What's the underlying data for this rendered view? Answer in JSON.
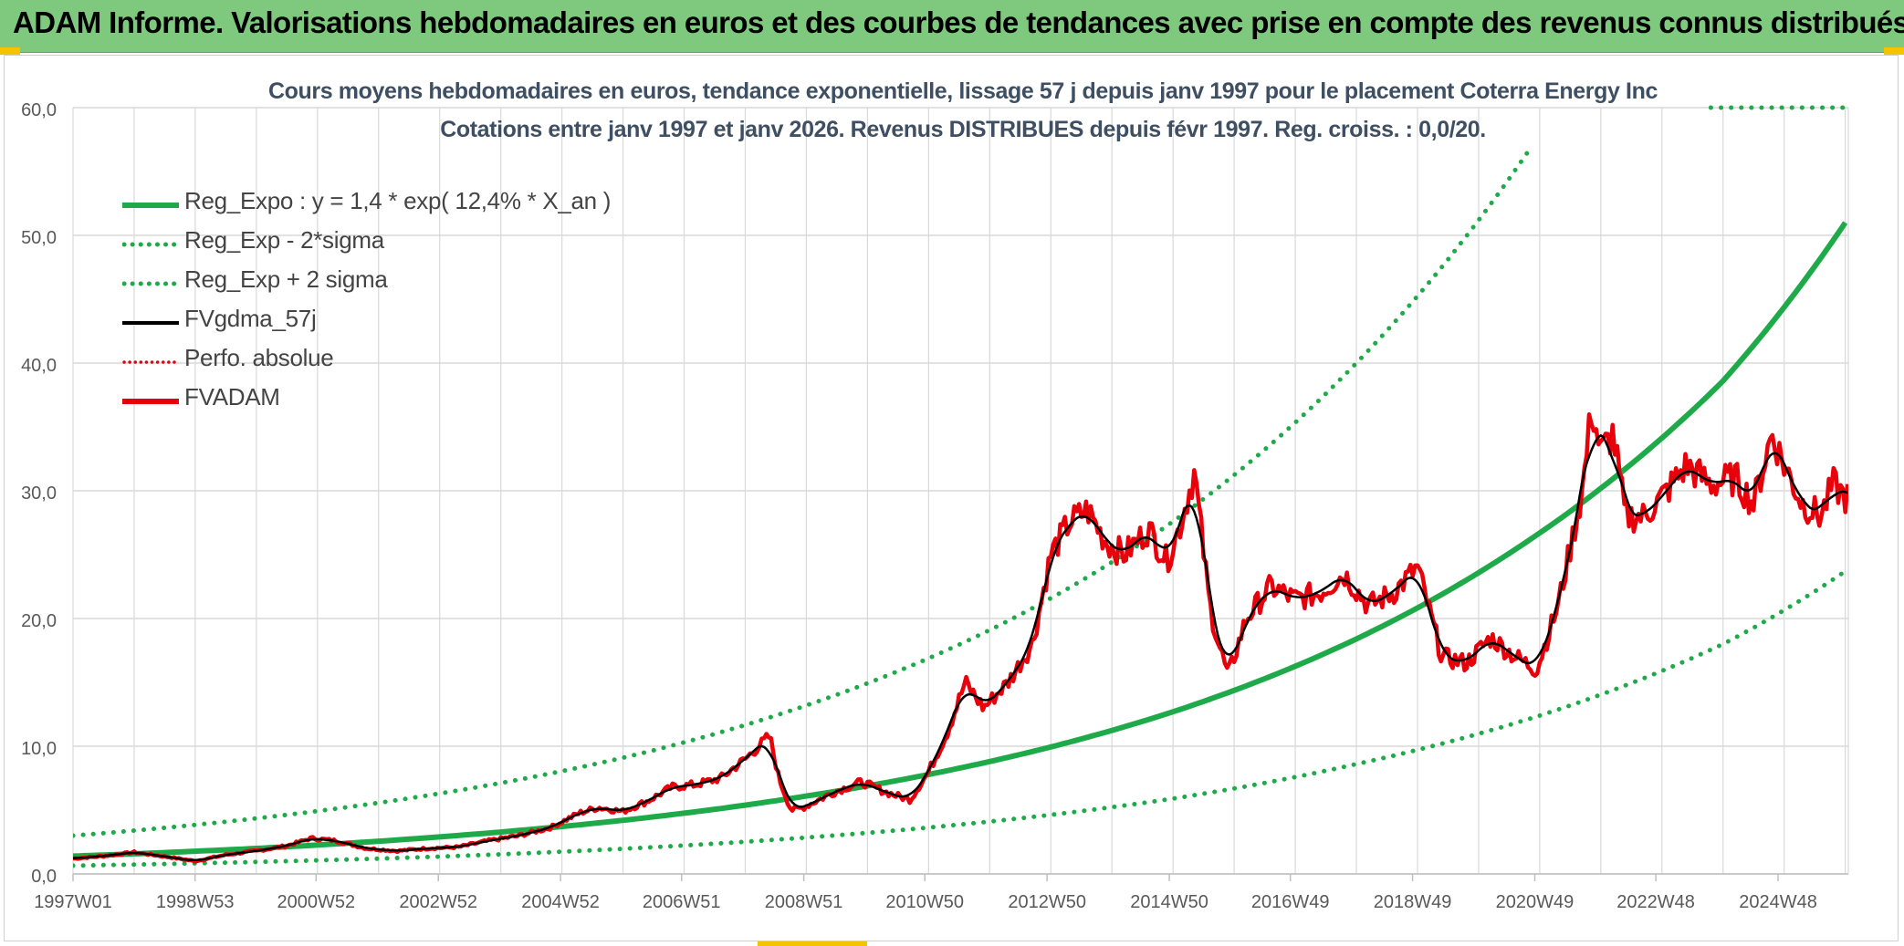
{
  "banner": {
    "title": "ADAM Informe. Valorisations hebdomadaires en euros et des courbes de tendances avec prise en compte des revenus connus distribués"
  },
  "colors": {
    "banner_bg": "#7fc97f",
    "trend_green": "#1faa4a",
    "fvadam_red": "#e8000b",
    "fvgdma_black": "#000000",
    "grid": "#d9d9d9",
    "title_text": "#3e4f63",
    "axis_text": "#595959",
    "corner_yellow": "#f5c400"
  },
  "chart_data": {
    "type": "line",
    "title_line1": "Cours moyens hebdomadaires en euros, tendance exponentielle, lissage 57 j depuis janv 1997 pour le placement Coterra Energy Inc",
    "title_line2": "Cotations entre janv 1997 et janv 2026. Revenus DISTRIBUES depuis févr 1997. Reg. croiss. : 0,0/20.",
    "x_ticks": [
      "1997W01",
      "1998W53",
      "2000W52",
      "2002W52",
      "2004W52",
      "2006W51",
      "2008W51",
      "2010W50",
      "2012W50",
      "2014W50",
      "2016W49",
      "2018W49",
      "2020W49",
      "2022W48",
      "2024W48"
    ],
    "x_range_years": [
      1997.0,
      2026.05
    ],
    "y_ticks": [
      "0,0",
      "10,0",
      "20,0",
      "30,0",
      "40,0",
      "50,0",
      "60,0"
    ],
    "ylim": [
      0,
      60
    ],
    "legend": [
      {
        "key": "reg_expo",
        "label": "Reg_Expo : y = 1,4 * exp( 12,4% *  X_an )",
        "style": "solid-green-thick"
      },
      {
        "key": "reg_minus",
        "label": "Reg_Exp - 2*sigma",
        "style": "dotted-green"
      },
      {
        "key": "reg_plus",
        "label": "Reg_Exp + 2 sigma",
        "style": "dotted-green"
      },
      {
        "key": "fvgdma",
        "label": "FVgdma_57j",
        "style": "solid-black"
      },
      {
        "key": "perfo",
        "label": "Perfo. absolue",
        "style": "dotted-red"
      },
      {
        "key": "fvadam",
        "label": "FVADAM",
        "style": "solid-red-thick"
      }
    ],
    "series": [
      {
        "name": "Reg_Expo",
        "formula": {
          "a": 1.4,
          "rate": 0.124
        },
        "x": [
          1997,
          2000,
          2003,
          2006,
          2009,
          2012,
          2015,
          2018,
          2021,
          2024,
          2026
        ],
        "values": [
          1.4,
          2.0,
          2.9,
          4.2,
          6.1,
          8.8,
          12.7,
          18.4,
          26.7,
          38.6,
          51.0
        ]
      },
      {
        "name": "Reg_Exp - 2*sigma",
        "x": [
          1997,
          2000,
          2003,
          2006,
          2009,
          2012,
          2015,
          2018,
          2021,
          2024,
          2026
        ],
        "values": [
          0.65,
          0.94,
          1.36,
          1.97,
          2.85,
          4.1,
          5.9,
          8.6,
          12.4,
          18.0,
          23.7
        ]
      },
      {
        "name": "Reg_Exp + 2 sigma",
        "x": [
          1997,
          2000,
          2003,
          2006,
          2009,
          2012,
          2015,
          2018,
          2021
        ],
        "values": [
          3.0,
          4.35,
          6.3,
          9.1,
          13.2,
          19.1,
          27.6,
          40.0,
          57.9
        ],
        "note": "dotted line leaves the plot above 57 near 2021, resumes at 60 from ~2023.8 to 2026"
      },
      {
        "name": "FVADAM",
        "x": [
          1997.0,
          1997.5,
          1998.0,
          1998.6,
          1999.0,
          1999.5,
          2000.0,
          2000.5,
          2000.9,
          2001.3,
          2001.8,
          2002.3,
          2002.8,
          2003.3,
          2003.8,
          2004.3,
          2004.8,
          2005.3,
          2005.6,
          2006.0,
          2006.4,
          2006.8,
          2007.2,
          2007.6,
          2008.0,
          2008.4,
          2008.55,
          2008.75,
          2008.95,
          2009.2,
          2009.5,
          2009.9,
          2010.3,
          2010.7,
          2011.0,
          2011.3,
          2011.6,
          2011.9,
          2012.3,
          2012.7,
          2013.0,
          2013.3,
          2013.6,
          2013.9,
          2014.2,
          2014.6,
          2014.9,
          2015.1,
          2015.35,
          2015.6,
          2015.75,
          2015.9,
          2016.2,
          2016.6,
          2017.0,
          2017.4,
          2017.8,
          2018.2,
          2018.6,
          2019.0,
          2019.4,
          2019.8,
          2020.2,
          2020.6,
          2020.95,
          2021.3,
          2021.7,
          2021.85,
          2022.0,
          2022.2,
          2022.4,
          2022.7,
          2023.0,
          2023.4,
          2023.8,
          2024.2,
          2024.5,
          2024.8,
          2025.0,
          2025.3,
          2025.6,
          2025.8,
          2026.0
        ],
        "values": [
          1.2,
          1.4,
          1.7,
          1.3,
          1.0,
          1.5,
          1.8,
          2.2,
          2.8,
          2.6,
          2.0,
          1.8,
          2.0,
          2.1,
          2.6,
          3.0,
          3.6,
          4.8,
          5.2,
          4.9,
          5.7,
          6.8,
          7.0,
          7.5,
          9.0,
          10.8,
          7.5,
          5.0,
          5.2,
          5.8,
          6.5,
          7.2,
          6.4,
          5.8,
          8.0,
          11.0,
          15.0,
          13.0,
          15.0,
          18.0,
          25.0,
          27.5,
          28.5,
          26.0,
          25.0,
          27.0,
          24.5,
          27.0,
          31.5,
          21.0,
          18.0,
          15.5,
          20.0,
          22.5,
          21.5,
          22.0,
          23.5,
          21.0,
          22.0,
          24.0,
          17.0,
          16.5,
          18.5,
          17.0,
          16.0,
          21.0,
          30.0,
          36.5,
          33.0,
          34.5,
          28.0,
          28.0,
          29.5,
          32.0,
          30.5,
          31.0,
          29.0,
          34.5,
          32.0,
          29.0,
          28.0,
          30.5,
          29.5
        ]
      }
    ]
  }
}
